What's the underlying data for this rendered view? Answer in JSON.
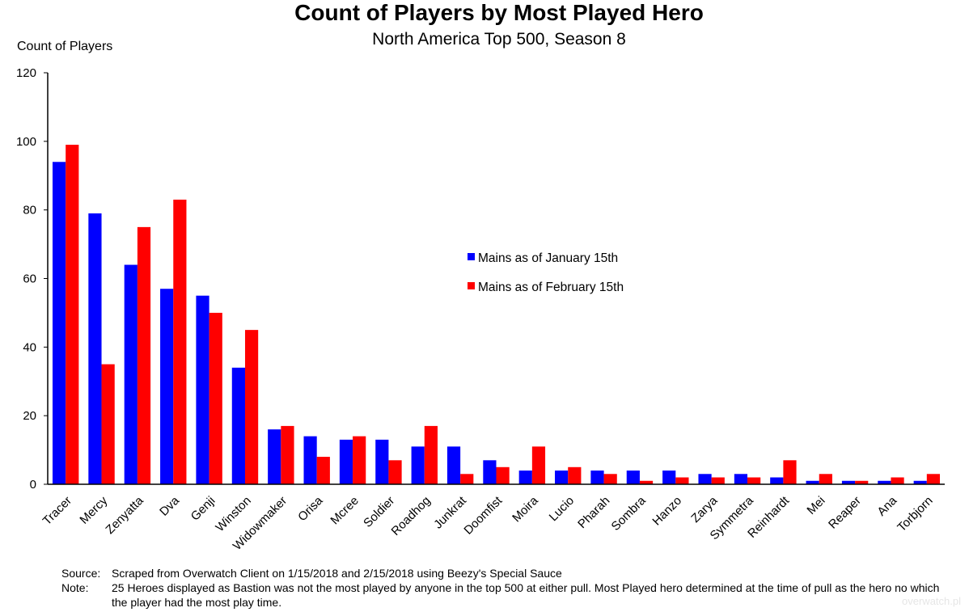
{
  "colors": {
    "series_jan": "#0000ff",
    "series_feb": "#ff0000",
    "axis": "#000000"
  },
  "chart_data": {
    "type": "bar",
    "title": "Count of Players by Most Played Hero",
    "subtitle": "North America Top 500, Season 8",
    "ylabel": "Count of Players",
    "xlabel": "",
    "ylim": [
      0,
      120
    ],
    "yticks": [
      0,
      20,
      40,
      60,
      80,
      100,
      120
    ],
    "grid": false,
    "legend_position": "center-right",
    "categories": [
      "Tracer",
      "Mercy",
      "Zenyatta",
      "Dva",
      "Genji",
      "Winston",
      "Widowmaker",
      "Orisa",
      "Mcree",
      "Soldier",
      "Roadhog",
      "Junkrat",
      "Doomfist",
      "Moira",
      "Lucio",
      "Pharah",
      "Sombra",
      "Hanzo",
      "Zarya",
      "Symmetra",
      "Reinhardt",
      "Mei",
      "Reaper",
      "Ana",
      "Torbjorn"
    ],
    "series": [
      {
        "name": "Mains as of January 15th",
        "color": "#0000ff",
        "values": [
          94,
          79,
          64,
          57,
          55,
          34,
          16,
          14,
          13,
          13,
          11,
          11,
          7,
          4,
          4,
          4,
          4,
          4,
          3,
          3,
          2,
          1,
          1,
          1,
          1
        ]
      },
      {
        "name": "Mains as of February 15th",
        "color": "#ff0000",
        "values": [
          99,
          35,
          75,
          83,
          50,
          45,
          17,
          8,
          14,
          7,
          17,
          3,
          5,
          11,
          5,
          3,
          1,
          2,
          2,
          2,
          7,
          3,
          1,
          2,
          3
        ]
      }
    ]
  },
  "notes": {
    "source_key": "Source:",
    "source_text": "Scraped from Overwatch Client on 1/15/2018 and 2/15/2018 using Beezy's Special Sauce",
    "note_key": "Note:",
    "note_text": "25 Heroes displayed as Bastion was not the most played by anyone in the top 500 at either pull. Most Played hero determined at the time of pull as the hero no which the player had the most play time."
  },
  "watermark": "overwatch.pl"
}
